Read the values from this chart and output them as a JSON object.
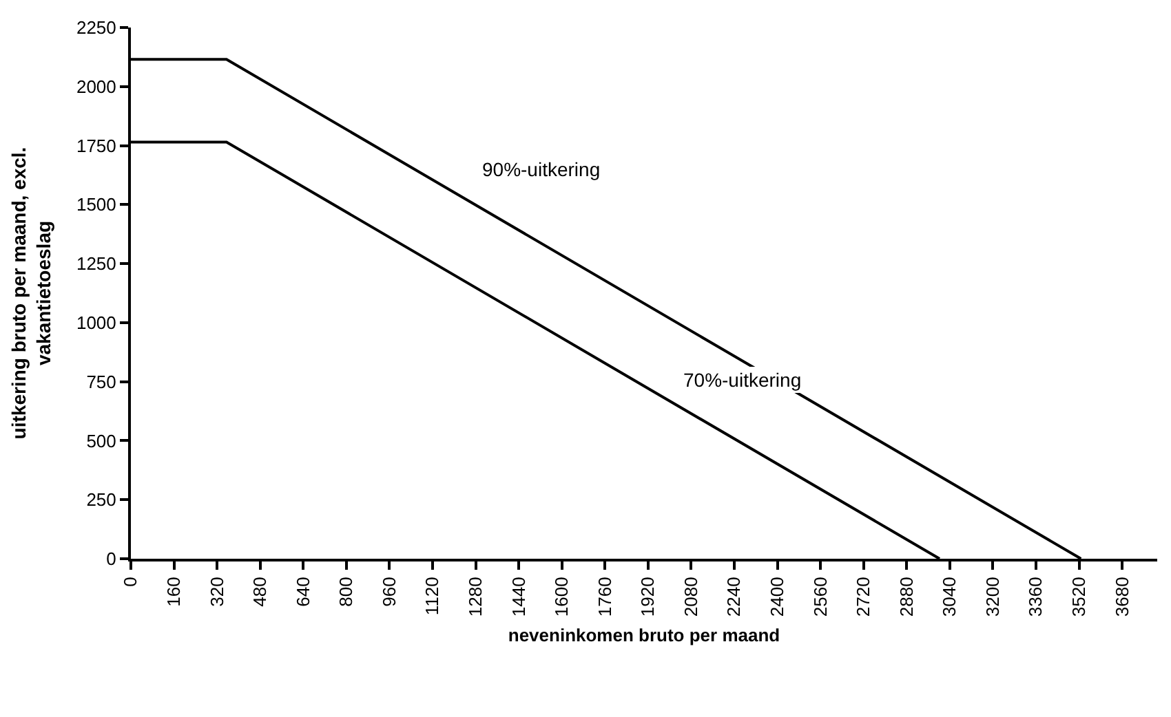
{
  "chart_data": {
    "type": "line",
    "xlabel": "neveninkomen bruto per maand",
    "ylabel": "uitkering bruto per maand, excl.\nvakantietoeslag",
    "series": [
      {
        "color": "#000000",
        "x": [
          0,
          355,
          3527
        ],
        "values": [
          2115,
          2115,
          0
        ]
      },
      {
        "color": "#000000",
        "x": [
          0,
          355,
          3002
        ],
        "values": [
          1765,
          1765,
          0
        ]
      }
    ],
    "annotations": [
      "90%-uitkering",
      "70%-uitkering"
    ],
    "xlim": [
      0,
      3810
    ],
    "xticks": [
      0,
      160,
      320,
      480,
      640,
      800,
      960,
      1120,
      1280,
      1440,
      1600,
      1760,
      1920,
      2080,
      2240,
      2400,
      2560,
      2720,
      2880,
      3040,
      3200,
      3360,
      3520,
      3680
    ],
    "ylim": [
      0,
      2250
    ],
    "yticks": [
      0,
      250,
      500,
      750,
      1000,
      1250,
      1500,
      1750,
      2000,
      2250
    ],
    "marker": "none",
    "line_style": "solid"
  }
}
